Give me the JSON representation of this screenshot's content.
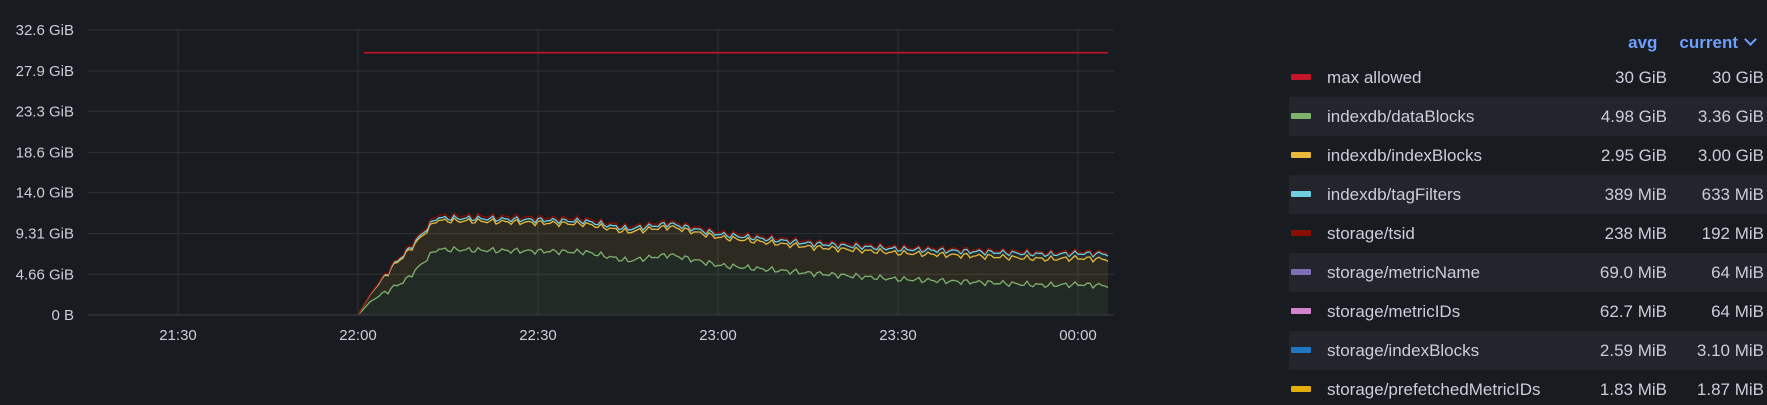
{
  "header": {
    "col_avg": "avg",
    "col_current": "current"
  },
  "legend": [
    {
      "name": "max allowed",
      "avg": "30 GiB",
      "current": "30 GiB",
      "color": "#c4162a"
    },
    {
      "name": "indexdb/dataBlocks",
      "avg": "4.98 GiB",
      "current": "3.36 GiB",
      "color": "#7eb26d"
    },
    {
      "name": "indexdb/indexBlocks",
      "avg": "2.95 GiB",
      "current": "3.00 GiB",
      "color": "#eab839"
    },
    {
      "name": "indexdb/tagFilters",
      "avg": "389 MiB",
      "current": "633 MiB",
      "color": "#6ed0e0"
    },
    {
      "name": "storage/tsid",
      "avg": "238 MiB",
      "current": "192 MiB",
      "color": "#890f02"
    },
    {
      "name": "storage/metricName",
      "avg": "69.0 MiB",
      "current": "64 MiB",
      "color": "#806eb7"
    },
    {
      "name": "storage/metricIDs",
      "avg": "62.7 MiB",
      "current": "64 MiB",
      "color": "#d683ce"
    },
    {
      "name": "storage/indexBlocks",
      "avg": "2.59 MiB",
      "current": "3.10 MiB",
      "color": "#1f78c1"
    },
    {
      "name": "storage/prefetchedMetricIDs",
      "avg": "1.83 MiB",
      "current": "1.87 MiB",
      "color": "#e5ac0e"
    }
  ],
  "chart_data": {
    "type": "area",
    "stacked": true,
    "y_tick_labels": [
      "0 B",
      "4.66 GiB",
      "9.31 GiB",
      "14.0 GiB",
      "18.6 GiB",
      "23.3 GiB",
      "27.9 GiB",
      "32.6 GiB"
    ],
    "y_ticks_gib": [
      0,
      4.66,
      9.31,
      14.0,
      18.6,
      23.3,
      27.9,
      32.6
    ],
    "ylim_gib": [
      0,
      32.6
    ],
    "x_tick_labels": [
      "21:30",
      "22:00",
      "22:30",
      "23:00",
      "23:30",
      "00:00"
    ],
    "x_ticks": [
      "21:30",
      "22:00",
      "22:30",
      "23:00",
      "23:30",
      "00:00"
    ],
    "xlim": [
      "21:15",
      "00:06"
    ],
    "grid": true,
    "legend_position": "right",
    "series": [
      {
        "name": "max allowed",
        "color": "#c4162a",
        "stacked": false,
        "x": [
          "22:01",
          "00:05"
        ],
        "y_gib": [
          30,
          30
        ]
      },
      {
        "name": "indexdb/dataBlocks",
        "color": "#7eb26d",
        "x": [
          "22:00",
          "22:02",
          "22:06",
          "22:08",
          "22:13",
          "22:22",
          "22:38",
          "22:45",
          "22:52",
          "23:00",
          "23:15",
          "23:30",
          "23:45",
          "23:55",
          "00:00",
          "00:05"
        ],
        "y_gib": [
          0,
          1.5,
          3.2,
          4.0,
          7.5,
          7.4,
          7.2,
          6.2,
          6.9,
          5.7,
          4.8,
          4.1,
          3.7,
          3.4,
          3.5,
          3.36
        ]
      },
      {
        "name": "indexdb/indexBlocks",
        "color": "#eab839",
        "x": [
          "22:00",
          "22:02",
          "22:06",
          "22:08",
          "22:13",
          "22:22",
          "22:38",
          "22:45",
          "22:52",
          "23:00",
          "23:15",
          "23:30",
          "23:45",
          "23:55",
          "00:00",
          "00:05"
        ],
        "y_gib": [
          0,
          0.8,
          2.5,
          3.0,
          3.3,
          3.3,
          3.2,
          3.3,
          3.2,
          3.2,
          3.0,
          3.0,
          3.0,
          3.0,
          3.0,
          3.0
        ]
      },
      {
        "name": "indexdb/tagFilters",
        "color": "#6ed0e0",
        "x": [
          "22:00",
          "22:13",
          "23:00",
          "00:00",
          "00:05"
        ],
        "y_gib": [
          0,
          0.3,
          0.35,
          0.55,
          0.62
        ]
      },
      {
        "name": "storage/tsid",
        "color": "#890f02",
        "x": [
          "22:00",
          "22:13",
          "23:00",
          "00:00",
          "00:05"
        ],
        "y_gib": [
          0,
          0.3,
          0.24,
          0.2,
          0.19
        ]
      }
    ]
  }
}
